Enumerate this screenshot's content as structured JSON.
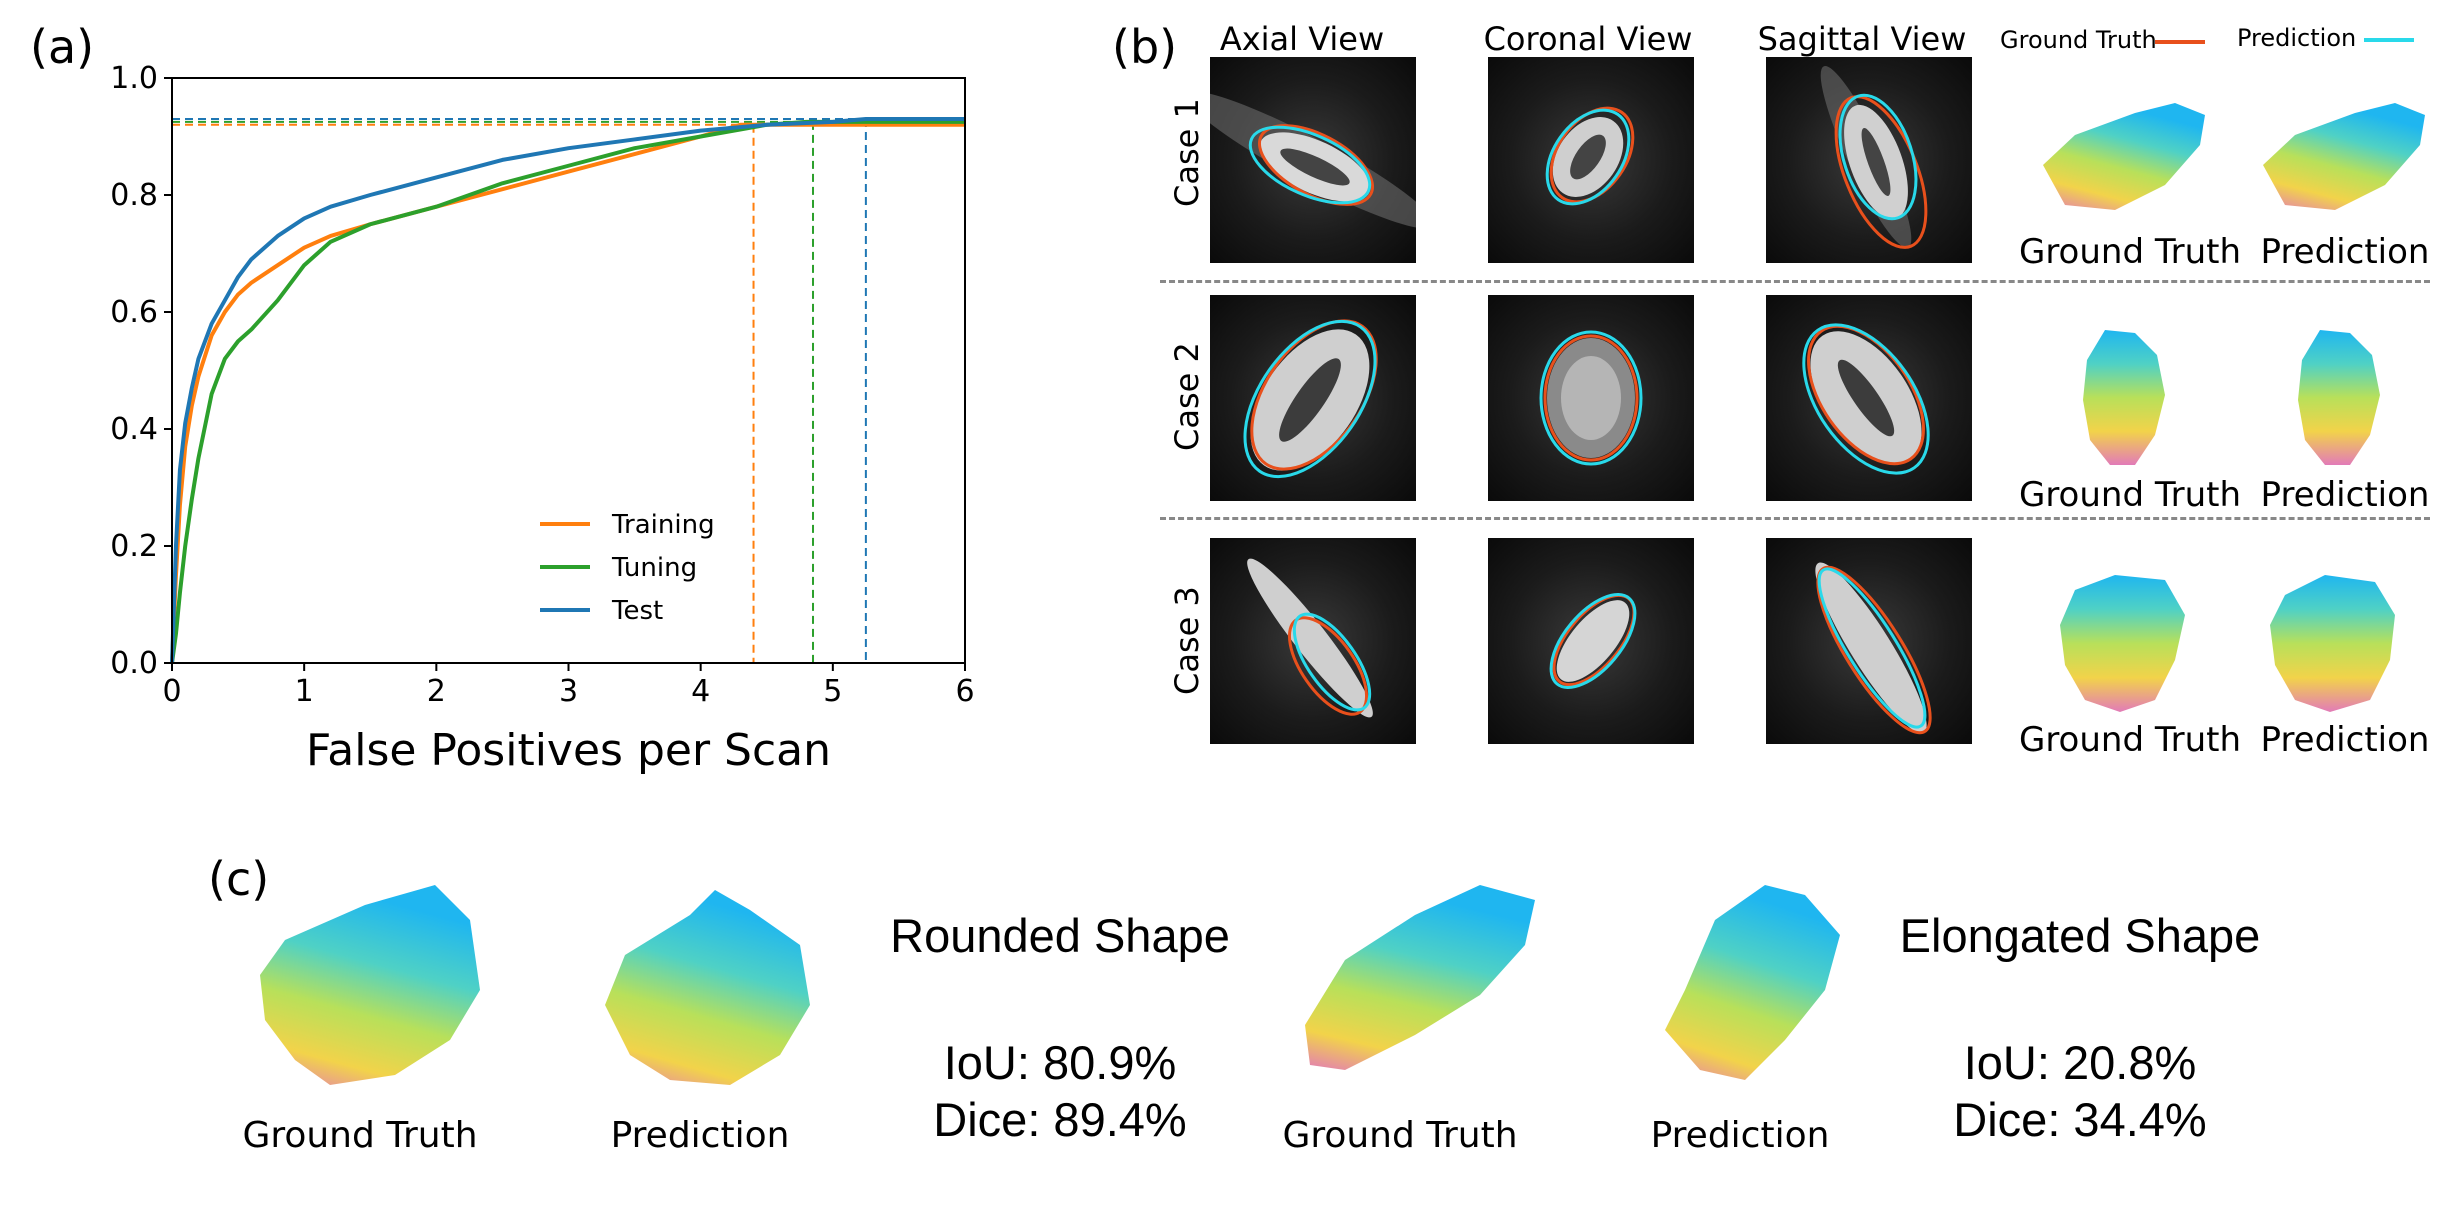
{
  "panel_a": {
    "letter": "(a)",
    "chart_data": {
      "type": "line",
      "xlabel": "False Positives per Scan",
      "ylabel": "",
      "xlim": [
        0,
        6
      ],
      "ylim": [
        0,
        1.0
      ],
      "x_ticks": [
        "0",
        "1",
        "2",
        "3",
        "4",
        "5",
        "6"
      ],
      "y_ticks": [
        "0.0",
        "0.2",
        "0.4",
        "0.6",
        "0.8",
        "1.0"
      ],
      "legend_position": "lower-right",
      "series": [
        {
          "name": "Training",
          "color": "#ff7f0e",
          "x": [
            0,
            0.03,
            0.06,
            0.1,
            0.15,
            0.2,
            0.3,
            0.4,
            0.5,
            0.6,
            0.8,
            1.0,
            1.2,
            1.5,
            2.0,
            2.5,
            3.0,
            3.5,
            4.0,
            4.3,
            4.8,
            5.3,
            6.0
          ],
          "values": [
            0.0,
            0.15,
            0.27,
            0.37,
            0.44,
            0.49,
            0.56,
            0.6,
            0.63,
            0.65,
            0.68,
            0.71,
            0.73,
            0.75,
            0.78,
            0.81,
            0.84,
            0.87,
            0.9,
            0.92,
            0.92,
            0.92,
            0.92
          ],
          "cutoff_x": 4.4,
          "plateau_y": 0.92
        },
        {
          "name": "Tuning",
          "color": "#2ca02c",
          "x": [
            0,
            0.03,
            0.06,
            0.1,
            0.15,
            0.2,
            0.3,
            0.4,
            0.5,
            0.6,
            0.8,
            1.0,
            1.2,
            1.5,
            2.0,
            2.5,
            3.0,
            3.5,
            4.0,
            4.5,
            4.8,
            5.3,
            6.0
          ],
          "values": [
            0.0,
            0.05,
            0.12,
            0.2,
            0.28,
            0.35,
            0.46,
            0.52,
            0.55,
            0.57,
            0.62,
            0.68,
            0.72,
            0.75,
            0.78,
            0.82,
            0.85,
            0.88,
            0.9,
            0.92,
            0.925,
            0.925,
            0.925
          ],
          "cutoff_x": 4.85,
          "plateau_y": 0.925
        },
        {
          "name": "Test",
          "color": "#1f77b4",
          "x": [
            0,
            0.03,
            0.06,
            0.1,
            0.15,
            0.2,
            0.3,
            0.4,
            0.5,
            0.6,
            0.8,
            1.0,
            1.2,
            1.5,
            2.0,
            2.5,
            3.0,
            3.5,
            4.0,
            4.5,
            5.0,
            5.25,
            6.0
          ],
          "values": [
            0.0,
            0.2,
            0.33,
            0.41,
            0.47,
            0.52,
            0.58,
            0.62,
            0.66,
            0.69,
            0.73,
            0.76,
            0.78,
            0.8,
            0.83,
            0.86,
            0.88,
            0.895,
            0.91,
            0.92,
            0.925,
            0.93,
            0.93
          ],
          "cutoff_x": 5.25,
          "plateau_y": 0.93
        }
      ]
    }
  },
  "panel_b": {
    "letter": "(b)",
    "views": [
      "Axial View",
      "Coronal View",
      "Sagittal View"
    ],
    "legend": [
      {
        "label": "Ground Truth",
        "color": "#e8501c"
      },
      {
        "label": "Prediction",
        "color": "#29d9ea"
      }
    ],
    "cases": [
      {
        "label": "Case 1",
        "gt_caption": "Ground Truth",
        "pred_caption": "Prediction"
      },
      {
        "label": "Case 2",
        "gt_caption": "Ground Truth",
        "pred_caption": "Prediction"
      },
      {
        "label": "Case 3",
        "gt_caption": "Ground Truth",
        "pred_caption": "Prediction"
      }
    ]
  },
  "panel_c": {
    "letter": "(c)",
    "groups": [
      {
        "title": "Rounded Shape",
        "iou": "IoU: 80.9%",
        "dice": "Dice: 89.4%",
        "gt_caption": "Ground Truth",
        "pred_caption": "Prediction"
      },
      {
        "title": "Elongated Shape",
        "iou": "IoU: 20.8%",
        "dice": "Dice: 34.4%",
        "gt_caption": "Ground Truth",
        "pred_caption": "Prediction"
      }
    ]
  }
}
